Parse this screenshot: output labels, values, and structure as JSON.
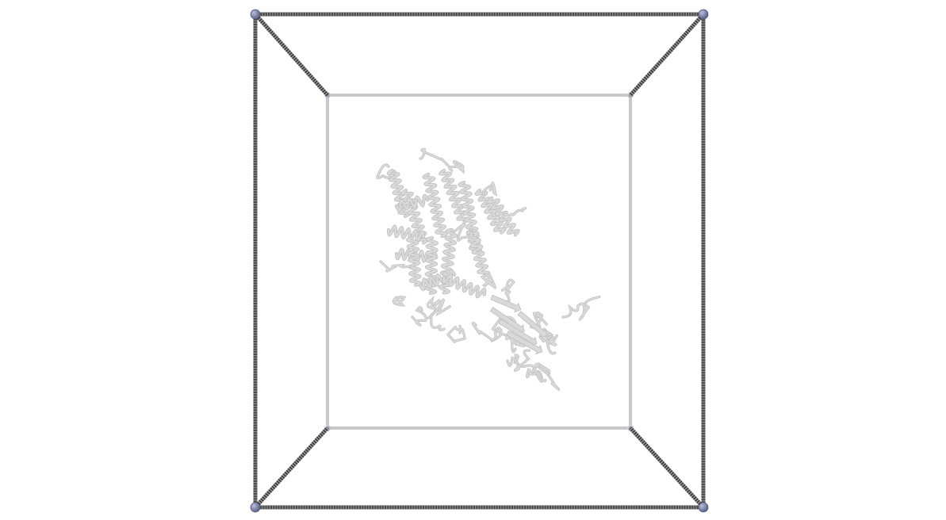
{
  "scene": {
    "background_color": "#ffffff",
    "front_edge_color": "#4a4a4a",
    "back_edge_color": "#c8c8c8",
    "front_corner_color": "#7f86a6",
    "back_corner_color": "#c9cde0",
    "protein_color": "#d9d9d9",
    "protein_shade_color": "#bdbdbd",
    "box_shape": "cube-wireframe",
    "molecule_style": "cartoon-ribbon"
  }
}
